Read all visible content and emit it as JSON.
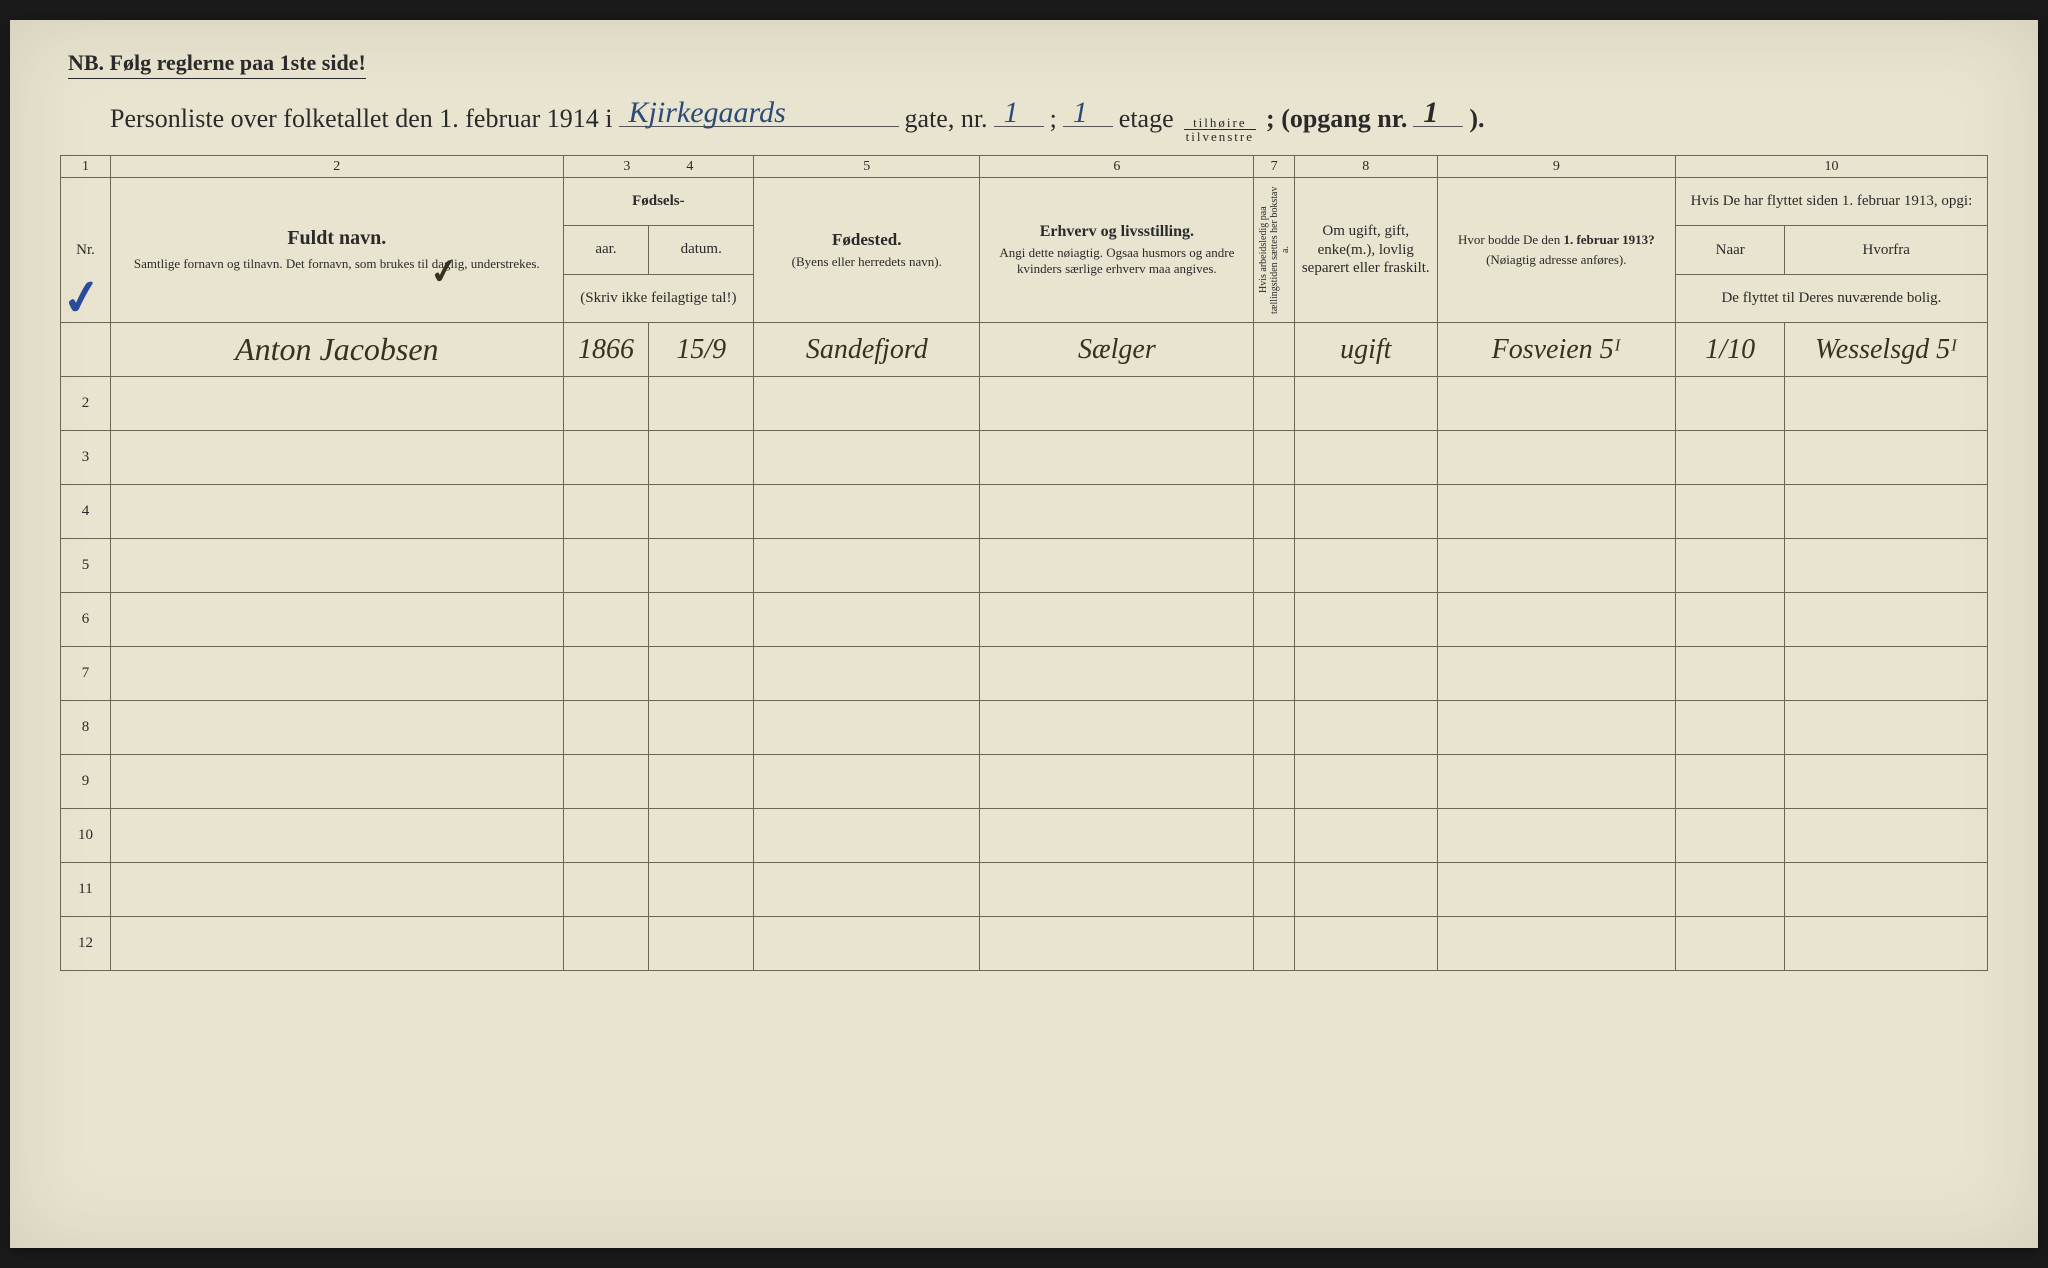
{
  "header": {
    "nb": "NB.  Følg reglerne paa 1ste side!",
    "title_prefix": "Personliste over folketallet den 1. februar 1914 i",
    "street_hand": "Kjirkegaards",
    "gate_label": "gate, nr.",
    "gate_nr": "1",
    "semicolon": ";",
    "etage_nr": "1",
    "etage_label": "etage",
    "fraction_top": "tilhøire",
    "fraction_bot": "tilvenstre",
    "opgang_label": "; (opgang nr.",
    "opgang_nr": "1",
    "close": ")."
  },
  "columns": {
    "nums": [
      "1",
      "2",
      "3",
      "4",
      "5",
      "6",
      "7",
      "8",
      "9",
      "10"
    ],
    "c1": "Nr.",
    "c2_top": "Fuldt navn.",
    "c2_sub": "Samtlige fornavn og tilnavn.   Det fornavn, som brukes til daglig, understrekes.",
    "c34_top": "Fødsels-",
    "c3": "aar.",
    "c4": "datum.",
    "c34_sub": "(Skriv ikke feilagtige tal!)",
    "c5_top": "Fødested.",
    "c5_sub": "(Byens eller herredets navn).",
    "c6_top": "Erhverv og livsstilling.",
    "c6_sub": "Angi dette nøiagtig. Ogsaa husmors og andre kvinders særlige erhverv maa angives.",
    "c7": "Hvis arbeidsledig paa tællingstiden sættes her bokstav a.",
    "c8": "Om ugift, gift, enke(m.), lovlig separert eller fraskilt.",
    "c9_top": "Hvor bodde De den 1. februar 1913?",
    "c9_sub": "(Nøiagtig adresse anføres).",
    "c10_top": "Hvis De har flyttet siden 1. februar 1913, opgi:",
    "c10a": "Naar",
    "c10b": "Hvorfra",
    "c10_sub": "De flyttet til Deres nuværende bolig."
  },
  "row1": {
    "checkmark": "✓",
    "name": "Anton Jacobsen",
    "checkmark2": "✓",
    "year": "1866",
    "date": "15/9",
    "birthplace": "Sandefjord",
    "occupation": "Sælger",
    "col7": "",
    "marital": "ugift",
    "addr1913": "Fosveien 5ᴵ",
    "moved_when": "1/10",
    "moved_from": "Wesselsgd 5ᴵ"
  },
  "empty_rows": [
    "2",
    "3",
    "4",
    "5",
    "6",
    "7",
    "8",
    "9",
    "10",
    "11",
    "12"
  ],
  "colwidths": {
    "c1": "42px",
    "c2": "380px",
    "c3": "72px",
    "c4": "88px",
    "c5": "190px",
    "c6": "230px",
    "c7": "34px",
    "c8": "120px",
    "c9": "200px",
    "c10a": "92px",
    "c10b": "170px"
  },
  "colors": {
    "paper": "#e8e4d0",
    "ink_print": "#2a2a2a",
    "ink_blue": "#2a4a7a",
    "ink_pen": "#3a3022",
    "rule": "#6a6555"
  }
}
